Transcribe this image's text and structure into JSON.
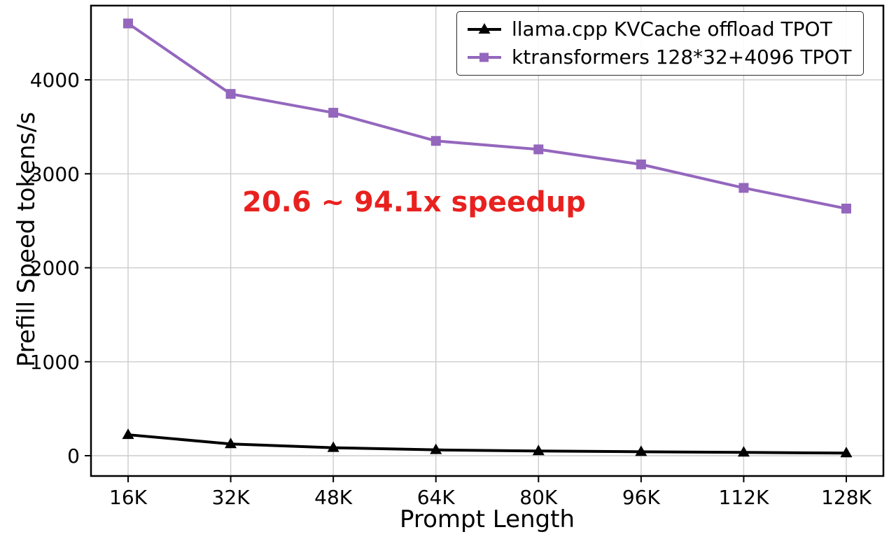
{
  "chart_data": {
    "type": "line",
    "title": "",
    "xlabel": "Prompt Length",
    "ylabel": "Prefill Speed tokens/s",
    "categories": [
      "16K",
      "32K",
      "48K",
      "64K",
      "80K",
      "96K",
      "112K",
      "128K"
    ],
    "series": [
      {
        "name": "llama.cpp KVCache offload TPOT",
        "color": "#000000",
        "marker": "triangle",
        "values": [
          223,
          125,
          85,
          62,
          50,
          42,
          35,
          28
        ]
      },
      {
        "name": "ktransformers 128*32+4096 TPOT",
        "color": "#9467bd",
        "marker": "square",
        "values": [
          4600,
          3850,
          3650,
          3350,
          3260,
          3100,
          2850,
          2630
        ]
      }
    ],
    "yticks": [
      0,
      1000,
      2000,
      3000,
      4000
    ],
    "ylim": [
      -216,
      4790
    ],
    "grid": true,
    "grid_color": "#cccccc",
    "legend_position": "upper right",
    "annotation": {
      "text": "20.6 ~ 94.1x speedup",
      "color": "#e8211f"
    }
  }
}
